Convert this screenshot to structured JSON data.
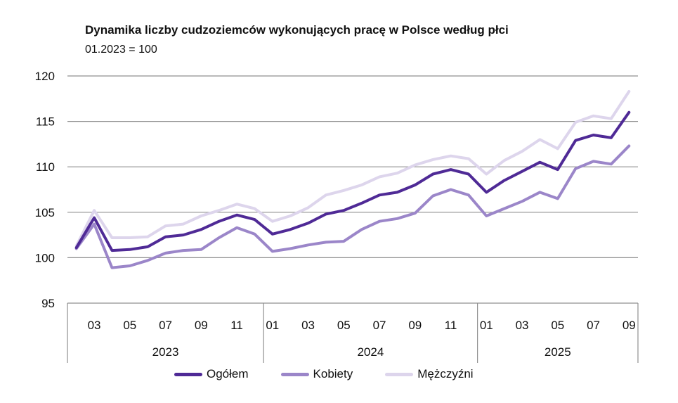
{
  "chart_data": {
    "type": "line",
    "title": "Dynamika liczby cudzoziemców wykonujących pracę w Polsce według płci",
    "subtitle": "01.2023 = 100",
    "ylim": [
      95,
      120
    ],
    "yticks": [
      95,
      100,
      105,
      110,
      115,
      120
    ],
    "month_labels": [
      "",
      "03",
      "",
      "05",
      "",
      "07",
      "",
      "09",
      "",
      "11",
      "",
      "01",
      "",
      "03",
      "",
      "05",
      "",
      "07",
      "",
      "09",
      "",
      "11",
      "",
      "01",
      "",
      "03",
      "",
      "05",
      "",
      "07",
      "",
      "09"
    ],
    "year_groups": [
      {
        "label": "2023",
        "months": 11
      },
      {
        "label": "2024",
        "months": 12
      },
      {
        "label": "2025",
        "months": 9
      }
    ],
    "series": [
      {
        "name": "Mężczyźni",
        "color": "#ddd5ec",
        "values": [
          101.3,
          105.2,
          102.2,
          102.2,
          102.3,
          103.5,
          103.7,
          104.6,
          105.2,
          105.9,
          105.4,
          104.0,
          104.6,
          105.5,
          106.9,
          107.4,
          108.0,
          108.9,
          109.3,
          110.2,
          110.8,
          111.2,
          110.9,
          109.2,
          110.7,
          111.7,
          113.0,
          112.0,
          114.9,
          115.6,
          115.3,
          118.3
        ]
      },
      {
        "name": "Kobiety",
        "color": "#9b86c9",
        "values": [
          101.0,
          103.7,
          98.9,
          99.1,
          99.7,
          100.5,
          100.8,
          100.9,
          102.2,
          103.3,
          102.6,
          100.7,
          101.0,
          101.4,
          101.7,
          101.8,
          103.1,
          104.0,
          104.3,
          104.9,
          106.8,
          107.5,
          106.9,
          104.6,
          105.4,
          106.2,
          107.2,
          106.5,
          109.8,
          110.6,
          110.3,
          112.3
        ]
      },
      {
        "name": "Ogółem",
        "color": "#4f2a96",
        "values": [
          101.1,
          104.4,
          100.8,
          100.9,
          101.2,
          102.3,
          102.5,
          103.1,
          104.0,
          104.7,
          104.2,
          102.6,
          103.1,
          103.8,
          104.8,
          105.2,
          106.0,
          106.9,
          107.2,
          108.0,
          109.2,
          109.7,
          109.2,
          107.2,
          108.5,
          109.5,
          110.5,
          109.7,
          112.9,
          113.5,
          113.2,
          116.0
        ]
      }
    ],
    "legend": [
      "Ogółem",
      "Kobiety",
      "Mężczyźni"
    ],
    "legend_position": "bottom"
  }
}
